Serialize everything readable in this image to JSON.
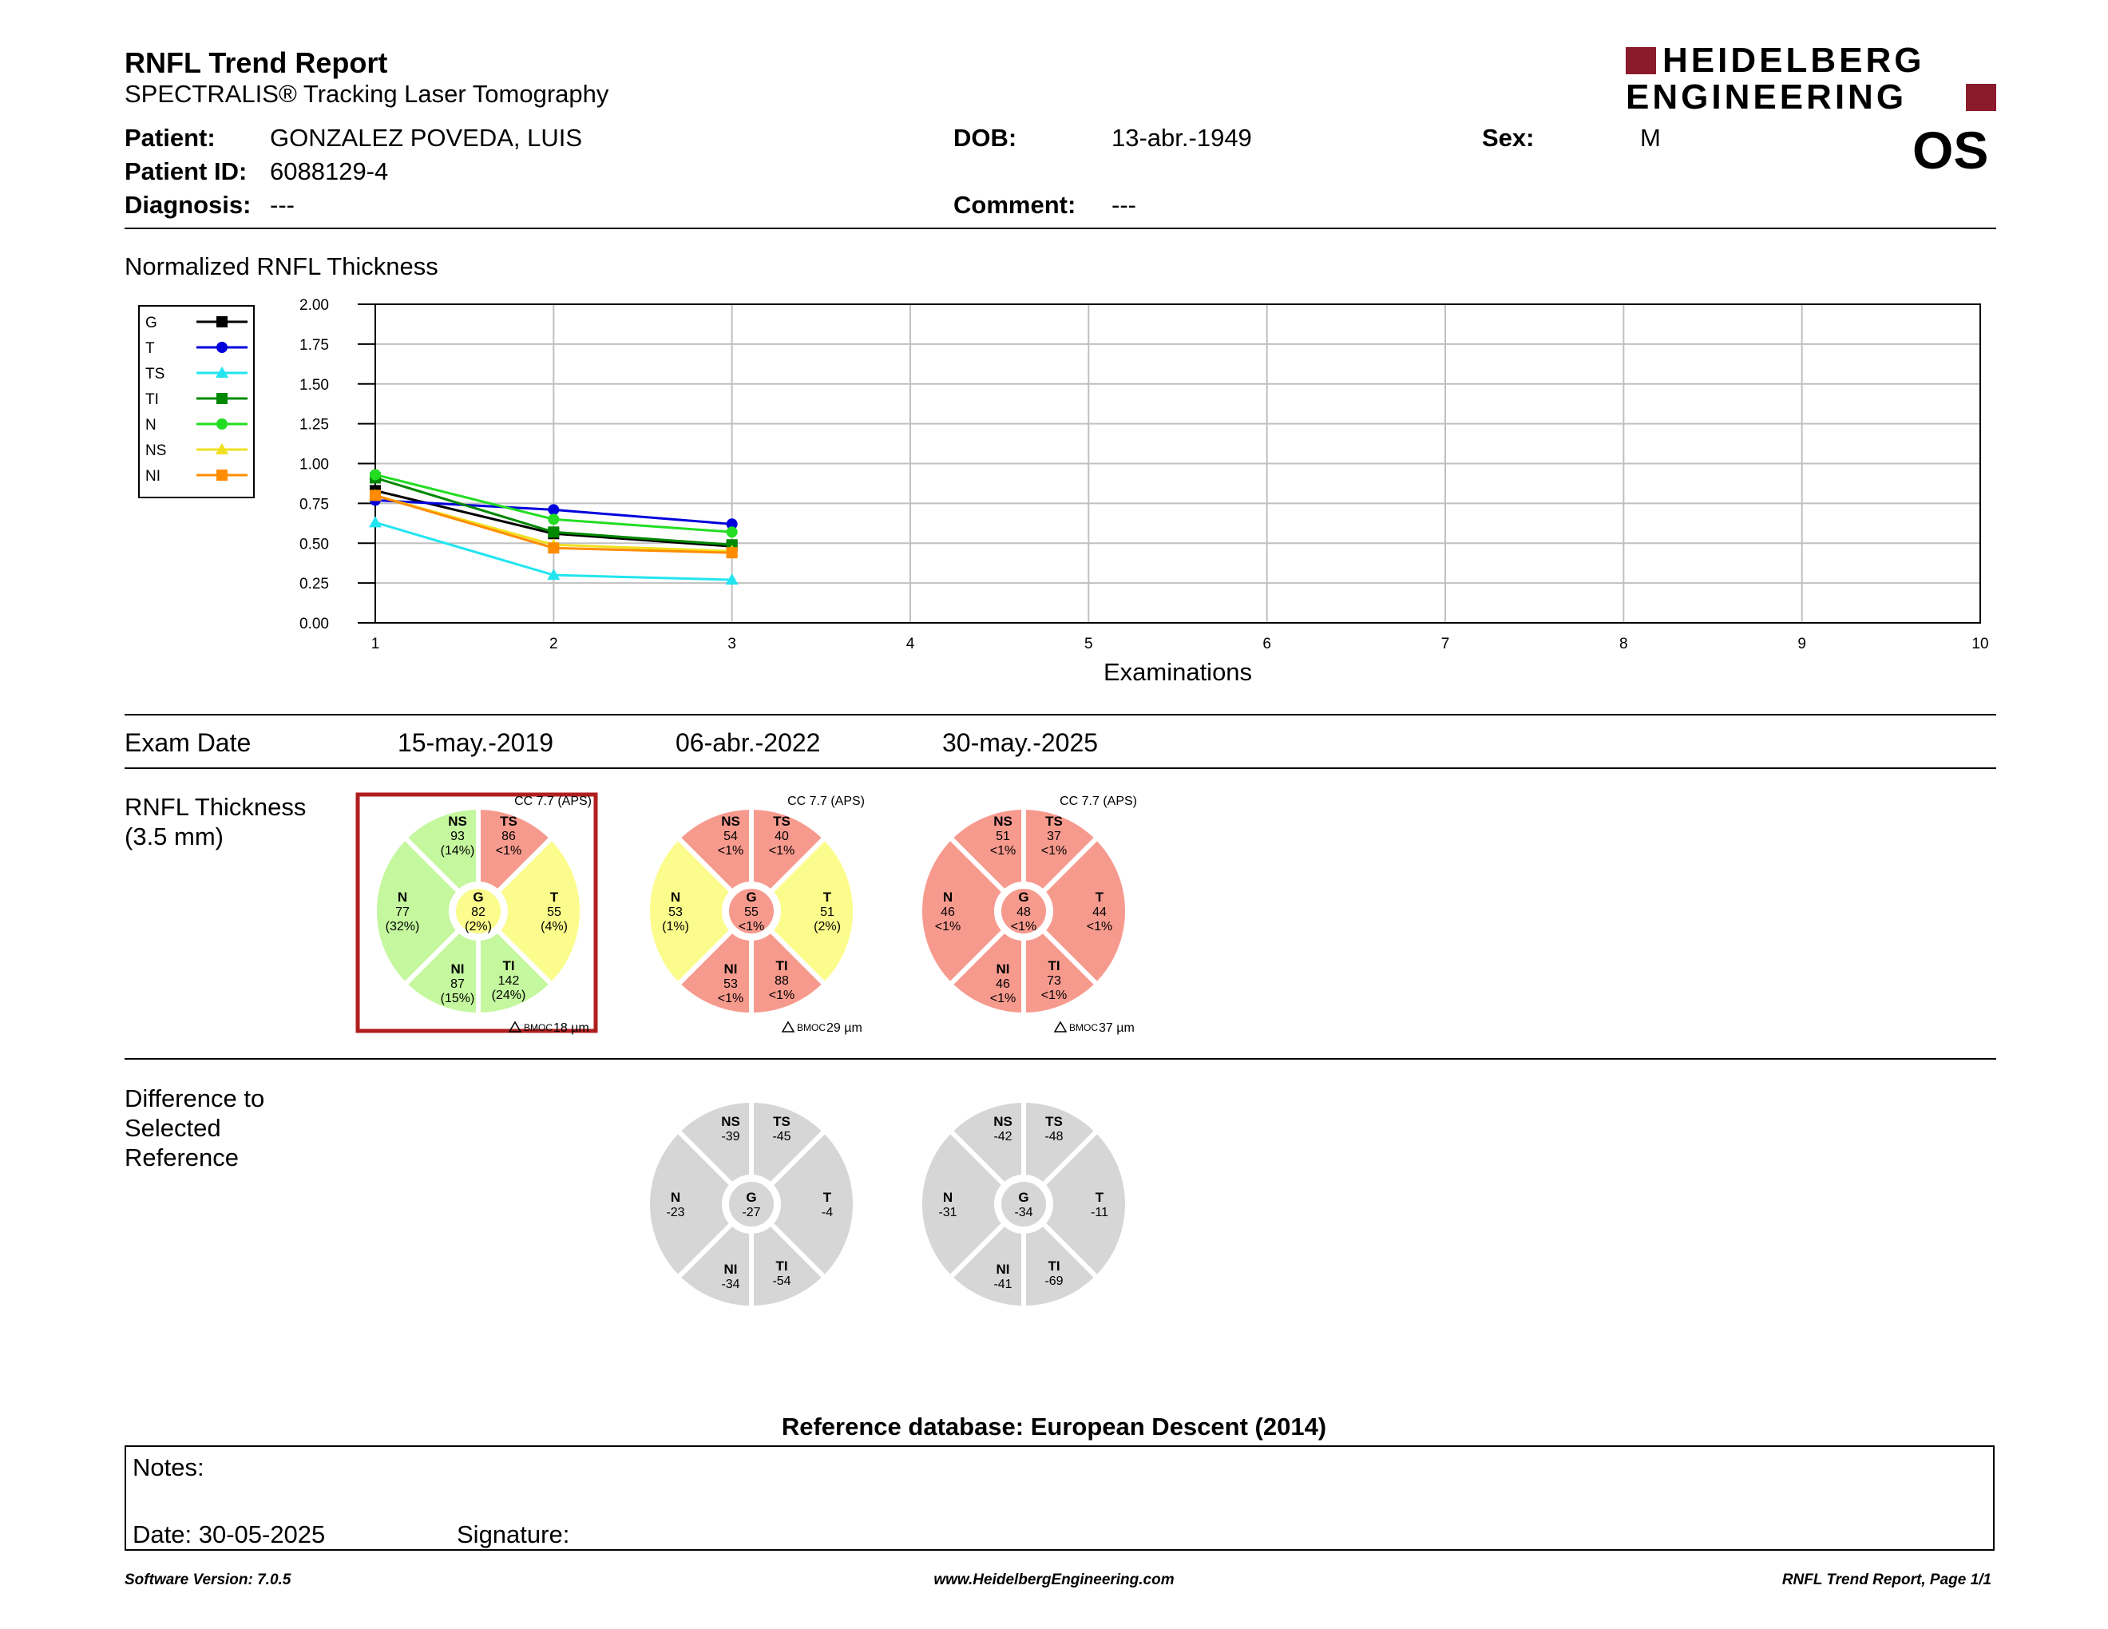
{
  "header": {
    "title": "RNFL Trend Report",
    "subtitle": "SPECTRALIS® Tracking Laser Tomography",
    "logo_line1": "HEIDELBERG",
    "logo_line2": "ENGINEERING",
    "logo_color": "#8b1a2b",
    "eye": "OS"
  },
  "patient": {
    "name_label": "Patient:",
    "name": "GONZALEZ POVEDA, LUIS",
    "id_label": "Patient ID:",
    "id": "6088129-4",
    "diagnosis_label": "Diagnosis:",
    "diagnosis": "---",
    "dob_label": "DOB:",
    "dob": "13-abr.-1949",
    "comment_label": "Comment:",
    "comment": "---",
    "sex_label": "Sex:",
    "sex": "M"
  },
  "chart_section_title": "Normalized RNFL Thickness",
  "chart_data": {
    "type": "line",
    "xlabel": "Examinations",
    "ylabel": "",
    "xlim": [
      1,
      10
    ],
    "ylim": [
      0,
      2
    ],
    "x_ticks": [
      "1",
      "2",
      "3",
      "4",
      "5",
      "6",
      "7",
      "8",
      "9",
      "10"
    ],
    "y_ticks": [
      "0.00",
      "0.25",
      "0.50",
      "0.75",
      "1.00",
      "1.25",
      "1.50",
      "1.75",
      "2.00"
    ],
    "grid": true,
    "legend_position": "left",
    "series": [
      {
        "name": "G",
        "color": "#000000",
        "marker": "square",
        "x": [
          1,
          2,
          3
        ],
        "y": [
          0.83,
          0.56,
          0.48
        ]
      },
      {
        "name": "T",
        "color": "#0000dd",
        "marker": "circle",
        "x": [
          1,
          2,
          3
        ],
        "y": [
          0.77,
          0.71,
          0.62
        ]
      },
      {
        "name": "TS",
        "color": "#22e5f0",
        "marker": "triangle",
        "x": [
          1,
          2,
          3
        ],
        "y": [
          0.63,
          0.3,
          0.27
        ]
      },
      {
        "name": "TI",
        "color": "#008800",
        "marker": "square",
        "x": [
          1,
          2,
          3
        ],
        "y": [
          0.91,
          0.57,
          0.49
        ]
      },
      {
        "name": "N",
        "color": "#22dd22",
        "marker": "circle",
        "x": [
          1,
          2,
          3
        ],
        "y": [
          0.93,
          0.65,
          0.57
        ]
      },
      {
        "name": "NS",
        "color": "#f0e020",
        "marker": "triangle",
        "x": [
          1,
          2,
          3
        ],
        "y": [
          0.8,
          0.49,
          0.45
        ]
      },
      {
        "name": "NI",
        "color": "#ff8c00",
        "marker": "square",
        "x": [
          1,
          2,
          3
        ],
        "y": [
          0.8,
          0.47,
          0.44
        ]
      }
    ]
  },
  "exam_date_label": "Exam Date",
  "exam_dates": [
    "15-may.-2019",
    "06-abr.-2022",
    "30-may.-2025"
  ],
  "rnfl_label_line1": "RNFL Thickness",
  "rnfl_label_line2": "(3.5 mm)",
  "colors": {
    "green": "#c4f79e",
    "yellow": "#fcfc8c",
    "red": "#f79a8e",
    "gray": "#d6d6d6",
    "selected": "#b01e1e"
  },
  "rnfl_circles": [
    {
      "cc": "CC 7.7 (APS)",
      "bmoc": "BMOC 18 µm",
      "selected": true,
      "sectors": {
        "NS": {
          "v": "93",
          "p": "(14%)",
          "c": "green"
        },
        "TS": {
          "v": "86",
          "p": "<1%",
          "c": "red"
        },
        "N": {
          "v": "77",
          "p": "(32%)",
          "c": "green"
        },
        "T": {
          "v": "55",
          "p": "(4%)",
          "c": "yellow"
        },
        "NI": {
          "v": "87",
          "p": "(15%)",
          "c": "green"
        },
        "TI": {
          "v": "142",
          "p": "(24%)",
          "c": "green"
        },
        "G": {
          "v": "82",
          "p": "(2%)",
          "c": "yellow"
        }
      }
    },
    {
      "cc": "CC 7.7 (APS)",
      "bmoc": "BMOC 29 µm",
      "selected": false,
      "sectors": {
        "NS": {
          "v": "54",
          "p": "<1%",
          "c": "red"
        },
        "TS": {
          "v": "40",
          "p": "<1%",
          "c": "red"
        },
        "N": {
          "v": "53",
          "p": "(1%)",
          "c": "yellow"
        },
        "T": {
          "v": "51",
          "p": "(2%)",
          "c": "yellow"
        },
        "NI": {
          "v": "53",
          "p": "<1%",
          "c": "red"
        },
        "TI": {
          "v": "88",
          "p": "<1%",
          "c": "red"
        },
        "G": {
          "v": "55",
          "p": "<1%",
          "c": "red"
        }
      }
    },
    {
      "cc": "CC 7.7 (APS)",
      "bmoc": "BMOC 37 µm",
      "selected": false,
      "sectors": {
        "NS": {
          "v": "51",
          "p": "<1%",
          "c": "red"
        },
        "TS": {
          "v": "37",
          "p": "<1%",
          "c": "red"
        },
        "N": {
          "v": "46",
          "p": "<1%",
          "c": "red"
        },
        "T": {
          "v": "44",
          "p": "<1%",
          "c": "red"
        },
        "NI": {
          "v": "46",
          "p": "<1%",
          "c": "red"
        },
        "TI": {
          "v": "73",
          "p": "<1%",
          "c": "red"
        },
        "G": {
          "v": "48",
          "p": "<1%",
          "c": "red"
        }
      }
    }
  ],
  "diff_label_lines": [
    "Difference to",
    "Selected",
    "Reference"
  ],
  "diff_circles": [
    {
      "NS": "-39",
      "TS": "-45",
      "N": "-23",
      "T": "-4",
      "NI": "-34",
      "TI": "-54",
      "G": "-27"
    },
    {
      "NS": "-42",
      "TS": "-48",
      "N": "-31",
      "T": "-11",
      "NI": "-41",
      "TI": "-69",
      "G": "-34"
    }
  ],
  "reference_db": "Reference database: European Descent (2014)",
  "notes": {
    "notes_label": "Notes:",
    "date_label": "Date: 30-05-2025",
    "signature_label": "Signature:"
  },
  "footer": {
    "left": "Software Version: 7.0.5",
    "center": "www.HeidelbergEngineering.com",
    "right": "RNFL Trend Report, Page 1/1"
  }
}
